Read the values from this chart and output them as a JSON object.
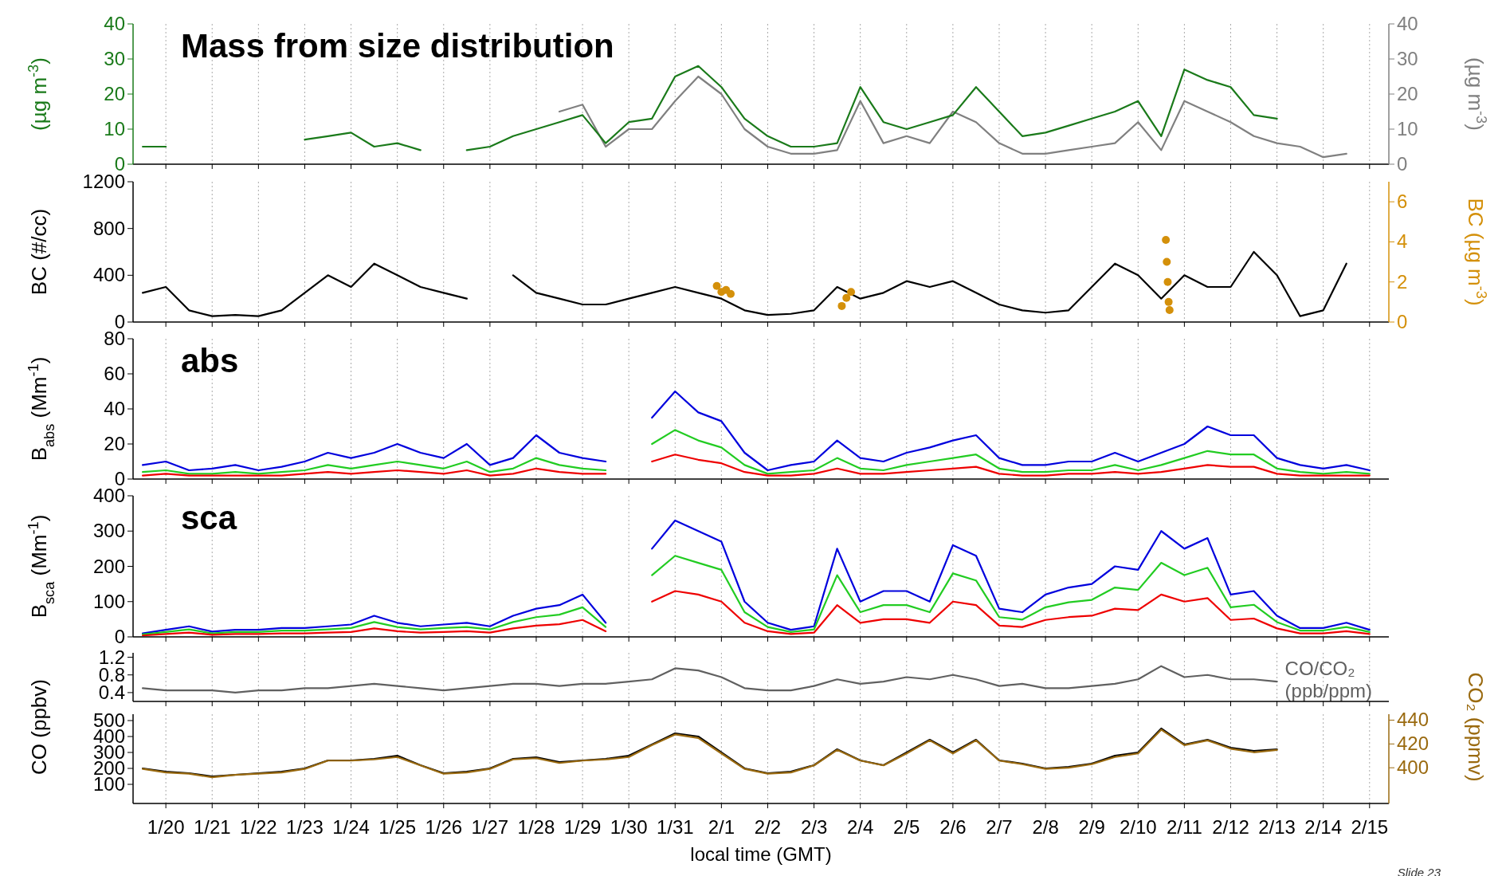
{
  "chart_data": [
    {
      "type": "line",
      "title": "Mass from size distribution",
      "ylabel": "(µg m$^{-3}$)",
      "y2label": "(µg m$^{-3}$)",
      "xlim": [
        "--01-19T07:00",
        "--02-15T10:00"
      ],
      "ylim": [
        0,
        40
      ],
      "yticks": [
        0,
        10,
        20,
        30,
        40
      ],
      "y2lim": [
        0,
        40
      ],
      "y2ticks": [
        0,
        10,
        20,
        30,
        40
      ],
      "grid": "x",
      "tick_labels": "y",
      "xticks": [
        {
          "value": "--01-20",
          "label": null
        },
        {
          "value": "--01-21",
          "label": null
        },
        {
          "value": "--01-22",
          "label": null
        },
        {
          "value": "--01-23",
          "label": null
        },
        {
          "value": "--01-24",
          "label": null
        },
        {
          "value": "--01-25",
          "label": null
        },
        {
          "value": "--01-26",
          "label": null
        },
        {
          "value": "--01-27",
          "label": null
        },
        {
          "value": "--01-28",
          "label": null
        },
        {
          "value": "--01-29",
          "label": null
        },
        {
          "value": "--01-30",
          "label": null
        },
        {
          "value": "--01-31",
          "label": null
        },
        {
          "value": "--02-01",
          "label": null
        },
        {
          "value": "--02-02",
          "label": null
        },
        {
          "value": "--02-03",
          "label": null
        },
        {
          "value": "--02-04",
          "label": null
        },
        {
          "value": "--02-05",
          "label": null
        },
        {
          "value": "--02-06",
          "label": null
        },
        {
          "value": "--02-07",
          "label": null
        },
        {
          "value": "--02-08",
          "label": null
        },
        {
          "value": "--02-09",
          "label": null
        },
        {
          "value": "--02-10",
          "label": null
        },
        {
          "value": "--02-11",
          "label": null
        },
        {
          "value": "--02-12",
          "label": null
        },
        {
          "value": "--02-13",
          "label": null
        },
        {
          "value": "--02-14",
          "label": null
        },
        {
          "value": "--02-15",
          "label": null
        }
      ],
      "x": [
        "--01-19T12:00",
        "--01-20",
        "--01-20T12:00",
        "--01-21",
        "--01-21T12:00",
        "--01-22",
        "--01-22T12:00",
        "--01-23",
        "--01-23T12:00",
        "--01-24",
        "--01-24T12:00",
        "--01-25",
        "--01-25T12:00",
        "--01-26",
        "--01-26T12:00",
        "--01-27",
        "--01-27T12:00",
        "--01-28",
        "--01-28T12:00",
        "--01-29",
        "--01-29T12:00",
        "--01-30",
        "--01-30T12:00",
        "--01-31",
        "--01-31T12:00",
        "--02-01",
        "--02-01T12:00",
        "--02-02",
        "--02-02T12:00",
        "--02-03",
        "--02-03T12:00",
        "--02-04",
        "--02-04T12:00",
        "--02-05",
        "--02-05T12:00",
        "--02-06",
        "--02-06T12:00",
        "--02-07",
        "--02-07T12:00",
        "--02-08",
        "--02-08T12:00",
        "--02-09",
        "--02-09T12:00",
        "--02-10",
        "--02-10T12:00",
        "--02-11",
        "--02-11T12:00",
        "--02-12",
        "--02-12T12:00",
        "--02-13",
        "--02-13T12:00",
        "--02-14",
        "--02-14T12:00"
      ],
      "series": [
        {
          "color": "#808080",
          "axis": "y2",
          "values": [
            null,
            null,
            null,
            null,
            null,
            null,
            null,
            null,
            null,
            null,
            null,
            null,
            null,
            null,
            null,
            null,
            null,
            null,
            15,
            17,
            5,
            10,
            10,
            18,
            25,
            20,
            10,
            5,
            3,
            3,
            4,
            18,
            6,
            8,
            6,
            15,
            12,
            6,
            3,
            3,
            4,
            5,
            6,
            12,
            4,
            18,
            15,
            12,
            8,
            6,
            5,
            2,
            3
          ]
        },
        {
          "color": "#1a7a1a",
          "values": [
            5,
            5,
            null,
            null,
            null,
            null,
            null,
            7,
            8,
            9,
            5,
            6,
            4,
            null,
            4,
            5,
            8,
            10,
            12,
            14,
            6,
            12,
            13,
            25,
            28,
            22,
            13,
            8,
            5,
            5,
            6,
            22,
            12,
            10,
            12,
            14,
            22,
            15,
            8,
            9,
            11,
            13,
            15,
            18,
            8,
            27,
            24,
            22,
            14,
            13,
            null,
            null,
            null
          ]
        }
      ]
    },
    {
      "type": "line",
      "ylabel": "BC (#/cc)",
      "y2label": "BC (µg m$^{-3}$)",
      "xlim": [
        "--01-19T07:00",
        "--02-15T10:00"
      ],
      "ylim": [
        0,
        1200
      ],
      "yticks": [
        0,
        400,
        800,
        1200
      ],
      "y2lim": [
        0,
        7
      ],
      "y2ticks": [
        0,
        2,
        4,
        6
      ],
      "grid": "x",
      "tick_labels": "y",
      "xticks": [
        {
          "value": "--01-20",
          "label": null
        },
        {
          "value": "--01-21",
          "label": null
        },
        {
          "value": "--01-22",
          "label": null
        },
        {
          "value": "--01-23",
          "label": null
        },
        {
          "value": "--01-24",
          "label": null
        },
        {
          "value": "--01-25",
          "label": null
        },
        {
          "value": "--01-26",
          "label": null
        },
        {
          "value": "--01-27",
          "label": null
        },
        {
          "value": "--01-28",
          "label": null
        },
        {
          "value": "--01-29",
          "label": null
        },
        {
          "value": "--01-30",
          "label": null
        },
        {
          "value": "--01-31",
          "label": null
        },
        {
          "value": "--02-01",
          "label": null
        },
        {
          "value": "--02-02",
          "label": null
        },
        {
          "value": "--02-03",
          "label": null
        },
        {
          "value": "--02-04",
          "label": null
        },
        {
          "value": "--02-05",
          "label": null
        },
        {
          "value": "--02-06",
          "label": null
        },
        {
          "value": "--02-07",
          "label": null
        },
        {
          "value": "--02-08",
          "label": null
        },
        {
          "value": "--02-09",
          "label": null
        },
        {
          "value": "--02-10",
          "label": null
        },
        {
          "value": "--02-11",
          "label": null
        },
        {
          "value": "--02-12",
          "label": null
        },
        {
          "value": "--02-13",
          "label": null
        },
        {
          "value": "--02-14",
          "label": null
        },
        {
          "value": "--02-15",
          "label": null
        }
      ],
      "x": [
        "--01-19T12:00",
        "--01-20",
        "--01-20T12:00",
        "--01-21",
        "--01-21T12:00",
        "--01-22",
        "--01-22T12:00",
        "--01-23",
        "--01-23T12:00",
        "--01-24",
        "--01-24T12:00",
        "--01-25",
        "--01-25T12:00",
        "--01-26",
        "--01-26T12:00",
        "--01-27",
        "--01-27T12:00",
        "--01-28",
        "--01-28T12:00",
        "--01-29",
        "--01-29T12:00",
        "--01-30",
        "--01-30T12:00",
        "--01-31",
        "--01-31T12:00",
        "--02-01",
        "--02-01T12:00",
        "--02-02",
        "--02-02T12:00",
        "--02-03",
        "--02-03T12:00",
        "--02-04",
        "--02-04T12:00",
        "--02-05",
        "--02-05T12:00",
        "--02-06",
        "--02-06T12:00",
        "--02-07",
        "--02-07T12:00",
        "--02-08",
        "--02-08T12:00",
        "--02-09",
        "--02-09T12:00",
        "--02-10",
        "--02-10T12:00",
        "--02-11",
        "--02-11T12:00",
        "--02-12",
        "--02-12T12:00",
        "--02-13",
        "--02-13T12:00",
        "--02-14",
        "--02-14T12:00"
      ],
      "series": [
        {
          "color": "#000000",
          "values": [
            250,
            300,
            100,
            50,
            60,
            50,
            100,
            250,
            400,
            300,
            500,
            400,
            300,
            250,
            200,
            null,
            400,
            250,
            200,
            150,
            150,
            200,
            250,
            300,
            250,
            200,
            100,
            60,
            70,
            100,
            300,
            200,
            250,
            350,
            300,
            350,
            250,
            150,
            100,
            80,
            100,
            300,
            500,
            400,
            200,
            400,
            300,
            300,
            600,
            400,
            50,
            100,
            500
          ]
        },
        {
          "type": "scatter",
          "marker": "circle",
          "color": "#d4900a",
          "axis": "y2",
          "x": [
            "--01-31T21:36",
            "--02-01",
            "--02-01T02:24",
            "--02-01T04:48",
            "--02-03T14:24",
            "--02-03T16:48",
            "--02-03T19:12",
            "--02-10T14:24",
            "--02-10T14:53",
            "--02-10T15:22",
            "--02-10T15:50",
            "--02-10T16:19"
          ],
          "values": [
            1.8,
            1.5,
            1.6,
            1.4,
            0.8,
            1.2,
            1.5,
            4.1,
            3.0,
            2.0,
            1.0,
            0.6
          ]
        }
      ]
    },
    {
      "type": "line",
      "title": "abs",
      "ylabel": "B$_{abs}$ (Mm$^{-1}$)",
      "xlim": [
        "--01-19T07:00",
        "--02-15T10:00"
      ],
      "ylim": [
        0,
        80
      ],
      "yticks": [
        0,
        20,
        40,
        60,
        80
      ],
      "grid": "x",
      "tick_labels": "y",
      "xticks": [
        {
          "value": "--01-20",
          "label": null
        },
        {
          "value": "--01-21",
          "label": null
        },
        {
          "value": "--01-22",
          "label": null
        },
        {
          "value": "--01-23",
          "label": null
        },
        {
          "value": "--01-24",
          "label": null
        },
        {
          "value": "--01-25",
          "label": null
        },
        {
          "value": "--01-26",
          "label": null
        },
        {
          "value": "--01-27",
          "label": null
        },
        {
          "value": "--01-28",
          "label": null
        },
        {
          "value": "--01-29",
          "label": null
        },
        {
          "value": "--01-30",
          "label": null
        },
        {
          "value": "--01-31",
          "label": null
        },
        {
          "value": "--02-01",
          "label": null
        },
        {
          "value": "--02-02",
          "label": null
        },
        {
          "value": "--02-03",
          "label": null
        },
        {
          "value": "--02-04",
          "label": null
        },
        {
          "value": "--02-05",
          "label": null
        },
        {
          "value": "--02-06",
          "label": null
        },
        {
          "value": "--02-07",
          "label": null
        },
        {
          "value": "--02-08",
          "label": null
        },
        {
          "value": "--02-09",
          "label": null
        },
        {
          "value": "--02-10",
          "label": null
        },
        {
          "value": "--02-11",
          "label": null
        },
        {
          "value": "--02-12",
          "label": null
        },
        {
          "value": "--02-13",
          "label": null
        },
        {
          "value": "--02-14",
          "label": null
        },
        {
          "value": "--02-15",
          "label": null
        }
      ],
      "x": [
        "--01-19T12:00",
        "--01-20",
        "--01-20T12:00",
        "--01-21",
        "--01-21T12:00",
        "--01-22",
        "--01-22T12:00",
        "--01-23",
        "--01-23T12:00",
        "--01-24",
        "--01-24T12:00",
        "--01-25",
        "--01-25T12:00",
        "--01-26",
        "--01-26T12:00",
        "--01-27",
        "--01-27T12:00",
        "--01-28",
        "--01-28T12:00",
        "--01-29",
        "--01-29T12:00",
        "--01-30",
        "--01-30T12:00",
        "--01-31",
        "--01-31T12:00",
        "--02-01",
        "--02-01T12:00",
        "--02-02",
        "--02-02T12:00",
        "--02-03",
        "--02-03T12:00",
        "--02-04",
        "--02-04T12:00",
        "--02-05",
        "--02-05T12:00",
        "--02-06",
        "--02-06T12:00",
        "--02-07",
        "--02-07T12:00",
        "--02-08",
        "--02-08T12:00",
        "--02-09",
        "--02-09T12:00",
        "--02-10",
        "--02-10T12:00",
        "--02-11",
        "--02-11T12:00",
        "--02-12",
        "--02-12T12:00",
        "--02-13",
        "--02-13T12:00",
        "--02-14",
        "--02-14T12:00",
        "--02-15"
      ],
      "series": [
        {
          "color": "#0000dd",
          "values": [
            8,
            10,
            5,
            6,
            8,
            5,
            7,
            10,
            15,
            12,
            15,
            20,
            15,
            12,
            20,
            8,
            12,
            25,
            15,
            12,
            10,
            null,
            35,
            50,
            38,
            33,
            15,
            5,
            8,
            10,
            22,
            12,
            10,
            15,
            18,
            22,
            25,
            12,
            8,
            8,
            10,
            10,
            15,
            10,
            15,
            20,
            30,
            25,
            25,
            12,
            8,
            6,
            8,
            5
          ]
        },
        {
          "color": "#22cc22",
          "values": [
            4,
            5,
            3,
            3,
            4,
            3,
            4,
            5,
            8,
            6,
            8,
            10,
            8,
            6,
            10,
            4,
            6,
            12,
            8,
            6,
            5,
            null,
            20,
            28,
            22,
            18,
            8,
            3,
            4,
            5,
            12,
            6,
            5,
            8,
            10,
            12,
            14,
            6,
            4,
            4,
            5,
            5,
            8,
            5,
            8,
            12,
            16,
            14,
            14,
            6,
            4,
            3,
            4,
            3
          ]
        },
        {
          "color": "#ee0000",
          "values": [
            2,
            3,
            2,
            2,
            2,
            2,
            2,
            3,
            4,
            3,
            4,
            5,
            4,
            3,
            5,
            2,
            3,
            6,
            4,
            3,
            3,
            null,
            10,
            14,
            11,
            9,
            4,
            2,
            2,
            3,
            6,
            3,
            3,
            4,
            5,
            6,
            7,
            3,
            2,
            2,
            3,
            3,
            4,
            3,
            4,
            6,
            8,
            7,
            7,
            3,
            2,
            2,
            2,
            2
          ]
        }
      ]
    },
    {
      "type": "line",
      "title": "sca",
      "ylabel": "B$_{sca}$ (Mm$^{-1}$)",
      "xlim": [
        "--01-19T07:00",
        "--02-15T10:00"
      ],
      "ylim": [
        0,
        400
      ],
      "yticks": [
        0,
        100,
        200,
        300,
        400
      ],
      "grid": "x",
      "tick_labels": "y",
      "xticks": [
        {
          "value": "--01-20",
          "label": null
        },
        {
          "value": "--01-21",
          "label": null
        },
        {
          "value": "--01-22",
          "label": null
        },
        {
          "value": "--01-23",
          "label": null
        },
        {
          "value": "--01-24",
          "label": null
        },
        {
          "value": "--01-25",
          "label": null
        },
        {
          "value": "--01-26",
          "label": null
        },
        {
          "value": "--01-27",
          "label": null
        },
        {
          "value": "--01-28",
          "label": null
        },
        {
          "value": "--01-29",
          "label": null
        },
        {
          "value": "--01-30",
          "label": null
        },
        {
          "value": "--01-31",
          "label": null
        },
        {
          "value": "--02-01",
          "label": null
        },
        {
          "value": "--02-02",
          "label": null
        },
        {
          "value": "--02-03",
          "label": null
        },
        {
          "value": "--02-04",
          "label": null
        },
        {
          "value": "--02-05",
          "label": null
        },
        {
          "value": "--02-06",
          "label": null
        },
        {
          "value": "--02-07",
          "label": null
        },
        {
          "value": "--02-08",
          "label": null
        },
        {
          "value": "--02-09",
          "label": null
        },
        {
          "value": "--02-10",
          "label": null
        },
        {
          "value": "--02-11",
          "label": null
        },
        {
          "value": "--02-12",
          "label": null
        },
        {
          "value": "--02-13",
          "label": null
        },
        {
          "value": "--02-14",
          "label": null
        },
        {
          "value": "--02-15",
          "label": null
        }
      ],
      "x": [
        "--01-19T12:00",
        "--01-20",
        "--01-20T12:00",
        "--01-21",
        "--01-21T12:00",
        "--01-22",
        "--01-22T12:00",
        "--01-23",
        "--01-23T12:00",
        "--01-24",
        "--01-24T12:00",
        "--01-25",
        "--01-25T12:00",
        "--01-26",
        "--01-26T12:00",
        "--01-27",
        "--01-27T12:00",
        "--01-28",
        "--01-28T12:00",
        "--01-29",
        "--01-29T12:00",
        "--01-30",
        "--01-30T12:00",
        "--01-31",
        "--01-31T12:00",
        "--02-01",
        "--02-01T12:00",
        "--02-02",
        "--02-02T12:00",
        "--02-03",
        "--02-03T12:00",
        "--02-04",
        "--02-04T12:00",
        "--02-05",
        "--02-05T12:00",
        "--02-06",
        "--02-06T12:00",
        "--02-07",
        "--02-07T12:00",
        "--02-08",
        "--02-08T12:00",
        "--02-09",
        "--02-09T12:00",
        "--02-10",
        "--02-10T12:00",
        "--02-11",
        "--02-11T12:00",
        "--02-12",
        "--02-12T12:00",
        "--02-13",
        "--02-13T12:00",
        "--02-14",
        "--02-14T12:00",
        "--02-15"
      ],
      "series": [
        {
          "color": "#0000dd",
          "values": [
            10,
            20,
            30,
            15,
            20,
            20,
            25,
            25,
            30,
            35,
            60,
            40,
            30,
            35,
            40,
            30,
            60,
            80,
            90,
            120,
            40,
            null,
            250,
            330,
            300,
            270,
            100,
            40,
            20,
            30,
            250,
            100,
            130,
            130,
            100,
            260,
            230,
            80,
            70,
            120,
            140,
            150,
            200,
            190,
            300,
            250,
            280,
            120,
            130,
            60,
            25,
            25,
            40,
            20
          ]
        },
        {
          "color": "#22cc22",
          "values": [
            7,
            14,
            21,
            10,
            14,
            14,
            18,
            18,
            21,
            25,
            42,
            28,
            21,
            25,
            28,
            21,
            42,
            56,
            63,
            84,
            28,
            null,
            175,
            230,
            210,
            190,
            70,
            28,
            14,
            21,
            175,
            70,
            90,
            90,
            70,
            180,
            160,
            56,
            49,
            84,
            98,
            105,
            140,
            133,
            210,
            175,
            196,
            84,
            91,
            42,
            18,
            18,
            28,
            14
          ]
        },
        {
          "color": "#ee0000",
          "values": [
            4,
            8,
            12,
            6,
            8,
            8,
            10,
            10,
            12,
            14,
            24,
            16,
            12,
            14,
            16,
            12,
            24,
            32,
            36,
            48,
            16,
            null,
            100,
            130,
            120,
            100,
            40,
            16,
            8,
            12,
            90,
            40,
            50,
            50,
            40,
            100,
            90,
            32,
            28,
            48,
            56,
            60,
            80,
            76,
            120,
            100,
            110,
            48,
            52,
            24,
            10,
            10,
            16,
            8
          ]
        }
      ]
    },
    {
      "type": "line",
      "xlim": [
        "--01-19T07:00",
        "--02-15T10:00"
      ],
      "ylim": [
        0.2,
        1.3
      ],
      "yticks": [
        0.4,
        0.8,
        1.2
      ],
      "grid": "x",
      "tick_labels": "y",
      "xticks": [
        {
          "value": "--01-20",
          "label": null
        },
        {
          "value": "--01-21",
          "label": null
        },
        {
          "value": "--01-22",
          "label": null
        },
        {
          "value": "--01-23",
          "label": null
        },
        {
          "value": "--01-24",
          "label": null
        },
        {
          "value": "--01-25",
          "label": null
        },
        {
          "value": "--01-26",
          "label": null
        },
        {
          "value": "--01-27",
          "label": null
        },
        {
          "value": "--01-28",
          "label": null
        },
        {
          "value": "--01-29",
          "label": null
        },
        {
          "value": "--01-30",
          "label": null
        },
        {
          "value": "--01-31",
          "label": null
        },
        {
          "value": "--02-01",
          "label": null
        },
        {
          "value": "--02-02",
          "label": null
        },
        {
          "value": "--02-03",
          "label": null
        },
        {
          "value": "--02-04",
          "label": null
        },
        {
          "value": "--02-05",
          "label": null
        },
        {
          "value": "--02-06",
          "label": null
        },
        {
          "value": "--02-07",
          "label": null
        },
        {
          "value": "--02-08",
          "label": null
        },
        {
          "value": "--02-09",
          "label": null
        },
        {
          "value": "--02-10",
          "label": null
        },
        {
          "value": "--02-11",
          "label": null
        },
        {
          "value": "--02-12",
          "label": null
        },
        {
          "value": "--02-13",
          "label": null
        },
        {
          "value": "--02-14",
          "label": null
        },
        {
          "value": "--02-15",
          "label": null
        }
      ],
      "x": [
        "--01-19T12:00",
        "--01-20",
        "--01-20T12:00",
        "--01-21",
        "--01-21T12:00",
        "--01-22",
        "--01-22T12:00",
        "--01-23",
        "--01-23T12:00",
        "--01-24",
        "--01-24T12:00",
        "--01-25",
        "--01-25T12:00",
        "--01-26",
        "--01-26T12:00",
        "--01-27",
        "--01-27T12:00",
        "--01-28",
        "--01-28T12:00",
        "--01-29",
        "--01-29T12:00",
        "--01-30",
        "--01-30T12:00",
        "--01-31",
        "--01-31T12:00",
        "--02-01",
        "--02-01T12:00",
        "--02-02",
        "--02-02T12:00",
        "--02-03",
        "--02-03T12:00",
        "--02-04",
        "--02-04T12:00",
        "--02-05",
        "--02-05T12:00",
        "--02-06",
        "--02-06T12:00",
        "--02-07",
        "--02-07T12:00",
        "--02-08",
        "--02-08T12:00",
        "--02-09",
        "--02-09T12:00",
        "--02-10",
        "--02-10T12:00",
        "--02-11",
        "--02-11T12:00",
        "--02-12",
        "--02-12T12:00",
        "--02-13"
      ],
      "series": [
        {
          "name": "CO/CO₂ (ppb/ppm)",
          "color": "#606060",
          "values": [
            0.5,
            0.45,
            0.45,
            0.45,
            0.4,
            0.45,
            0.45,
            0.5,
            0.5,
            0.55,
            0.6,
            0.55,
            0.5,
            0.45,
            0.5,
            0.55,
            0.6,
            0.6,
            0.55,
            0.6,
            0.6,
            0.65,
            0.7,
            0.95,
            0.9,
            0.75,
            0.5,
            0.45,
            0.45,
            0.55,
            0.7,
            0.6,
            0.65,
            0.75,
            0.7,
            0.8,
            0.7,
            0.55,
            0.6,
            0.5,
            0.5,
            0.55,
            0.6,
            0.7,
            1.0,
            0.75,
            0.8,
            0.7,
            0.7,
            0.65
          ]
        }
      ]
    },
    {
      "type": "line",
      "ylabel": "CO (ppbv)",
      "y2label": "CO₂ (ppmv)",
      "xlabel": "local time (GMT)",
      "xlim": [
        "--01-19T07:00",
        "--02-15T10:00"
      ],
      "ylim": [
        -20,
        540
      ],
      "yticks": [
        100,
        200,
        300,
        400,
        500
      ],
      "y2lim": [
        370,
        445
      ],
      "y2ticks": [
        400,
        420,
        440
      ],
      "grid": "x",
      "annotations": [
        "Slide 23"
      ],
      "xticks": [
        {
          "value": "--01-20",
          "label": "1/20"
        },
        {
          "value": "--01-21",
          "label": "1/21"
        },
        {
          "value": "--01-22",
          "label": "1/22"
        },
        {
          "value": "--01-23",
          "label": "1/23"
        },
        {
          "value": "--01-24",
          "label": "1/24"
        },
        {
          "value": "--01-25",
          "label": "1/25"
        },
        {
          "value": "--01-26",
          "label": "1/26"
        },
        {
          "value": "--01-27",
          "label": "1/27"
        },
        {
          "value": "--01-28",
          "label": "1/28"
        },
        {
          "value": "--01-29",
          "label": "1/29"
        },
        {
          "value": "--01-30",
          "label": "1/30"
        },
        {
          "value": "--01-31",
          "label": "1/31"
        },
        {
          "value": "--02-01",
          "label": "2/1"
        },
        {
          "value": "--02-02",
          "label": "2/2"
        },
        {
          "value": "--02-03",
          "label": "2/3"
        },
        {
          "value": "--02-04",
          "label": "2/4"
        },
        {
          "value": "--02-05",
          "label": "2/5"
        },
        {
          "value": "--02-06",
          "label": "2/6"
        },
        {
          "value": "--02-07",
          "label": "2/7"
        },
        {
          "value": "--02-08",
          "label": "2/8"
        },
        {
          "value": "--02-09",
          "label": "2/9"
        },
        {
          "value": "--02-10",
          "label": "2/10"
        },
        {
          "value": "--02-11",
          "label": "2/11"
        },
        {
          "value": "--02-12",
          "label": "2/12"
        },
        {
          "value": "--02-13",
          "label": "2/13"
        },
        {
          "value": "--02-14",
          "label": "2/14"
        },
        {
          "value": "--02-15",
          "label": "2/15"
        }
      ],
      "x": [
        "--01-19T12:00",
        "--01-20",
        "--01-20T12:00",
        "--01-21",
        "--01-21T12:00",
        "--01-22",
        "--01-22T12:00",
        "--01-23",
        "--01-23T12:00",
        "--01-24",
        "--01-24T12:00",
        "--01-25",
        "--01-25T12:00",
        "--01-26",
        "--01-26T12:00",
        "--01-27",
        "--01-27T12:00",
        "--01-28",
        "--01-28T12:00",
        "--01-29",
        "--01-29T12:00",
        "--01-30",
        "--01-30T12:00",
        "--01-31",
        "--01-31T12:00",
        "--02-01",
        "--02-01T12:00",
        "--02-02",
        "--02-02T12:00",
        "--02-03",
        "--02-03T12:00",
        "--02-04",
        "--02-04T12:00",
        "--02-05",
        "--02-05T12:00",
        "--02-06",
        "--02-06T12:00",
        "--02-07",
        "--02-07T12:00",
        "--02-08",
        "--02-08T12:00",
        "--02-09",
        "--02-09T12:00",
        "--02-10",
        "--02-10T12:00",
        "--02-11",
        "--02-11T12:00",
        "--02-12",
        "--02-12T12:00",
        "--02-13"
      ],
      "series": [
        {
          "color": "#000000",
          "values": [
            200,
            180,
            170,
            150,
            160,
            170,
            180,
            200,
            250,
            250,
            260,
            280,
            220,
            170,
            180,
            200,
            260,
            270,
            240,
            250,
            260,
            280,
            350,
            420,
            400,
            300,
            200,
            170,
            180,
            220,
            320,
            250,
            220,
            300,
            380,
            300,
            380,
            250,
            230,
            200,
            210,
            230,
            280,
            300,
            450,
            350,
            380,
            330,
            310,
            320
          ]
        },
        {
          "color": "#9a6a10",
          "axis": "y2",
          "values": [
            399,
            396,
            395,
            392,
            394,
            395,
            396,
            399,
            406,
            406,
            407,
            409,
            402,
            395,
            396,
            399,
            407,
            408,
            404,
            406,
            407,
            409,
            419,
            428,
            425,
            412,
            399,
            395,
            396,
            402,
            415,
            406,
            402,
            412,
            423,
            412,
            423,
            406,
            403,
            399,
            400,
            403,
            409,
            412,
            432,
            419,
            423,
            416,
            413,
            415
          ]
        }
      ]
    }
  ]
}
